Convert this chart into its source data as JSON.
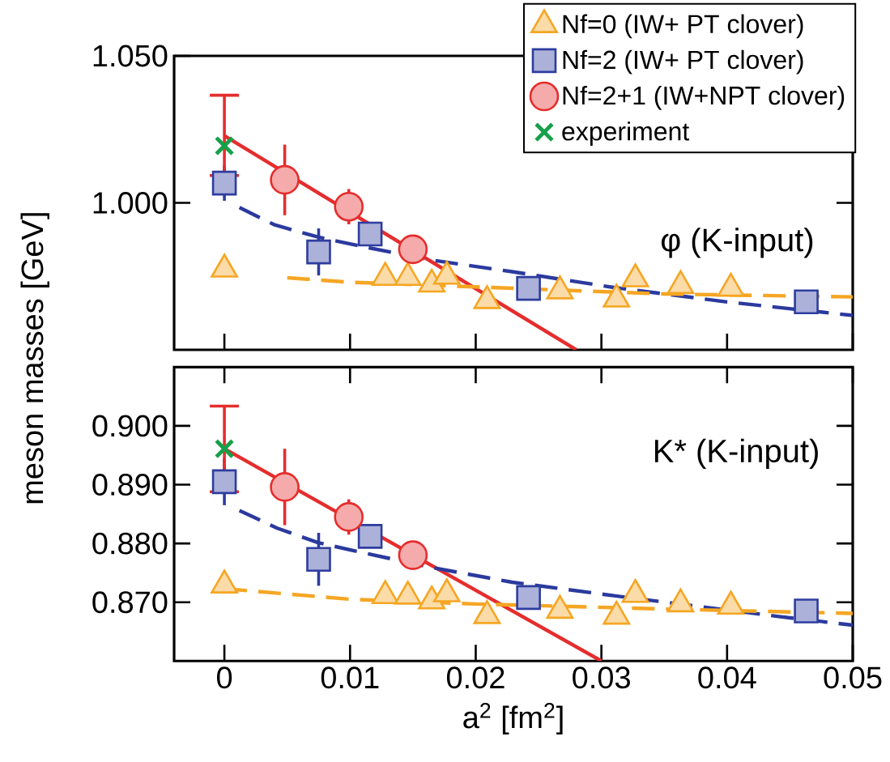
{
  "chart_data": [
    {
      "type": "scatter",
      "ylabel": "meson masses [GeV]",
      "annotations": [
        "φ (K-input)"
      ],
      "legend": "top right",
      "tick_labels": "y",
      "xlim": [
        -0.004,
        0.05
      ],
      "ylim": [
        0.95,
        1.05
      ],
      "xticks": [
        0,
        0.01,
        0.02,
        0.03,
        0.04,
        0.05
      ],
      "yticks": [
        {
          "value": 1.0,
          "label": "1.000"
        },
        {
          "value": 1.05,
          "label": "1.050"
        }
      ],
      "series": [
        {
          "name": "Nf=0 (IW+ PT clover)",
          "color": "#f5a623",
          "marker": "triangle",
          "x": [
            0,
            0.0128,
            0.0146,
            0.0165,
            0.0177,
            0.0209,
            0.0267,
            0.0312,
            0.0327,
            0.0363,
            0.0403
          ],
          "values": [
            0.9774,
            0.9746,
            0.9746,
            0.9723,
            0.975,
            0.9667,
            0.97,
            0.9672,
            0.9741,
            0.9718,
            0.9709
          ]
        },
        {
          "name": "Nf=2 (IW+ PT clover)",
          "color": "#2e3d9f",
          "marker": "square",
          "x": [
            0,
            0.0075,
            0.0116,
            0.0242,
            0.0463
          ],
          "values": [
            1.0067,
            0.9833,
            0.9894,
            0.9709,
            0.9663
          ],
          "errors": [
            0.006,
            0.008,
            null,
            null,
            null
          ]
        },
        {
          "name": "Nf=2+1 (IW+NPT clover)",
          "color": "#e52d2d",
          "marker": "circle",
          "x": [
            0.0048,
            0.0099,
            0.015
          ],
          "values": [
            1.0078,
            0.9987,
            0.9842
          ],
          "errors": [
            0.012,
            0.006,
            null
          ]
        },
        {
          "name": "experiment",
          "color": "#16a04a",
          "marker": "cross",
          "x": [
            0
          ],
          "values": [
            1.0194
          ]
        },
        {
          "type": "line",
          "color": "#e52d2d",
          "line_style": "solid",
          "marker": "none",
          "x": [
            0,
            0.028
          ],
          "values": [
            1.0228,
            0.95
          ],
          "errors": [
            [
              1.0093,
              1.0366
            ],
            null
          ]
        },
        {
          "type": "line",
          "color": "#2b3a9e",
          "line_style": "dashed",
          "marker": "none",
          "x": [
            0.0012,
            0.004,
            0.0075,
            0.0115,
            0.0165,
            0.023,
            0.031,
            0.04,
            0.05
          ],
          "values": [
            0.9984,
            0.9925,
            0.9883,
            0.9847,
            0.9805,
            0.9765,
            0.9712,
            0.9663,
            0.9617
          ]
        },
        {
          "type": "line",
          "color": "#f5a623",
          "line_style": "dashed",
          "marker": "none",
          "x": [
            0.005,
            0.01,
            0.02,
            0.035,
            0.05
          ],
          "values": [
            0.9745,
            0.973,
            0.9714,
            0.969,
            0.968
          ]
        }
      ]
    },
    {
      "type": "scatter",
      "xlabel": "a$^{2}$ [fm$^{2}$]",
      "annotations": [
        "K* (K-input)"
      ],
      "xlim": [
        -0.004,
        0.05
      ],
      "ylim": [
        0.86,
        0.91
      ],
      "xticks": [
        0,
        0.01,
        0.02,
        0.03,
        0.04,
        0.05
      ],
      "yticks": [
        {
          "value": 0.87,
          "label": "0.870"
        },
        {
          "value": 0.88,
          "label": "0.880"
        },
        {
          "value": 0.89,
          "label": "0.890"
        },
        {
          "value": 0.9,
          "label": "0.900"
        }
      ],
      "series": [
        {
          "color": "#f5a623",
          "marker": "triangle",
          "x": [
            0,
            0.0128,
            0.0146,
            0.0165,
            0.0177,
            0.0209,
            0.0267,
            0.0312,
            0.0327,
            0.0363,
            0.0403
          ],
          "values": [
            0.8729,
            0.8711,
            0.871,
            0.8702,
            0.8714,
            0.8677,
            0.8686,
            0.8676,
            0.8713,
            0.8697,
            0.8693
          ]
        },
        {
          "color": "#2e3d9f",
          "marker": "square",
          "x": [
            0,
            0.0075,
            0.0116,
            0.0242,
            0.0463
          ],
          "values": [
            0.8905,
            0.8773,
            0.8812,
            0.8708,
            0.8685
          ],
          "errors": [
            0.004,
            0.0045,
            null,
            null,
            null
          ]
        },
        {
          "color": "#e52d2d",
          "marker": "circle",
          "x": [
            0.0048,
            0.0099,
            0.015
          ],
          "values": [
            0.8896,
            0.8845,
            0.878
          ],
          "errors": [
            0.0065,
            0.003,
            null
          ]
        },
        {
          "color": "#16a04a",
          "marker": "cross",
          "x": [
            0
          ],
          "values": [
            0.8961
          ]
        },
        {
          "type": "line",
          "color": "#e52d2d",
          "line_style": "solid",
          "marker": "none",
          "x": [
            0,
            0.03
          ],
          "values": [
            0.8961,
            0.86
          ],
          "errors": [
            [
              0.8888,
              0.90335
            ],
            null
          ]
        },
        {
          "type": "line",
          "color": "#2b3a9e",
          "line_style": "dashed",
          "marker": "none",
          "x": [
            0.0012,
            0.0042,
            0.0075,
            0.0115,
            0.0165,
            0.0229,
            0.0303,
            0.044,
            0.05
          ],
          "values": [
            0.8856,
            0.8826,
            0.8801,
            0.8782,
            0.8759,
            0.8734,
            0.8713,
            0.8676,
            0.8661
          ]
        },
        {
          "type": "line",
          "color": "#f5a623",
          "line_style": "dashed",
          "marker": "none",
          "x": [
            0,
            0.01,
            0.02,
            0.0358,
            0.05
          ],
          "values": [
            0.8723,
            0.8705,
            0.8697,
            0.8688,
            0.8681
          ]
        }
      ]
    }
  ]
}
